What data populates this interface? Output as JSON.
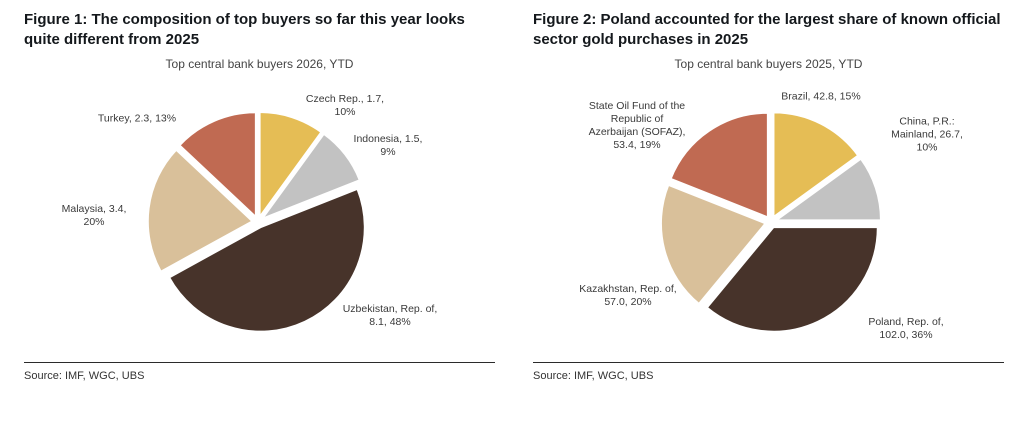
{
  "figures": [
    {
      "heading": "Figure 1: The composition of top buyers so far this year looks quite different from 2025",
      "chart_title": "Top central bank buyers 2026, YTD",
      "source": "Source: IMF, WGC, UBS",
      "chart_data": {
        "type": "pie",
        "title": "Top central bank buyers 2026, YTD",
        "start_angle_deg": -90,
        "direction": "clockwise",
        "center": [
          234,
          170
        ],
        "radius": 104,
        "explode": 6,
        "slices": [
          {
            "key": "czech-rep",
            "name": "Czech Rep.",
            "value": 1.7,
            "pct": 10,
            "color": "#e5bd55",
            "label": "Czech Rep., 1.7, 10%",
            "label_offset": [
              87,
              -116
            ],
            "label_width": 86
          },
          {
            "key": "indonesia",
            "name": "Indonesia",
            "value": 1.5,
            "pct": 9,
            "color": "#c2c2c2",
            "label": "Indonesia, 1.5, 9%",
            "label_offset": [
              130,
              -76
            ],
            "label_width": 84
          },
          {
            "key": "uzbekistan",
            "name": "Uzbekistan, Rep. of",
            "value": 8.1,
            "pct": 48,
            "color": "#47332a",
            "label": "Uzbekistan, Rep. of, 8.1, 48%",
            "label_offset": [
              132,
              94
            ],
            "label_width": 98
          },
          {
            "key": "malaysia",
            "name": "Malaysia",
            "value": 3.4,
            "pct": 20,
            "color": "#d9c09a",
            "label": "Malaysia, 3.4, 20%",
            "label_offset": [
              -164,
              -6
            ],
            "label_width": 86
          },
          {
            "key": "turkey",
            "name": "Turkey",
            "value": 2.3,
            "pct": 13,
            "color": "#c06a52",
            "label": "Turkey, 2.3, 13%",
            "label_offset": [
              -121,
              -103
            ],
            "label_width": 122
          }
        ]
      }
    },
    {
      "heading": "Figure 2: Poland accounted for the largest share of known official sector gold purchases in 2025",
      "chart_title": "Top central bank buyers 2025, YTD",
      "source": "Source: IMF, WGC, UBS",
      "chart_data": {
        "type": "pie",
        "title": "Top central bank buyers 2025, YTD",
        "start_angle_deg": -90,
        "direction": "clockwise",
        "center": [
          238,
          170
        ],
        "radius": 104,
        "explode": 6,
        "slices": [
          {
            "key": "brazil",
            "name": "Brazil",
            "value": 42.8,
            "pct": 15,
            "color": "#e5bd55",
            "label": "Brazil, 42.8, 15%",
            "label_offset": [
              50,
              -125
            ],
            "label_width": 118
          },
          {
            "key": "china",
            "name": "China, P.R.: Mainland",
            "value": 26.7,
            "pct": 10,
            "color": "#c2c2c2",
            "label": "China, P.R.: Mainland, 26.7, 10%",
            "label_offset": [
              156,
              -87
            ],
            "label_width": 94
          },
          {
            "key": "poland",
            "name": "Poland, Rep. of",
            "value": 102.0,
            "pct": 36,
            "color": "#47332a",
            "label": "Poland, Rep. of, 102.0, 36%",
            "label_offset": [
              135,
              107
            ],
            "label_width": 100
          },
          {
            "key": "kazakhstan",
            "name": "Kazakhstan, Rep. of",
            "value": 57.0,
            "pct": 20,
            "color": "#d9c09a",
            "label": "Kazakhstan, Rep. of, 57.0, 20%",
            "label_offset": [
              -143,
              74
            ],
            "label_width": 102
          },
          {
            "key": "sofaz",
            "name": "State Oil Fund of the Republic of Azerbaijan (SOFAZ)",
            "value": 53.4,
            "pct": 19,
            "color": "#c06a52",
            "label": "State Oil Fund of the Republic of Azerbaijan (SOFAZ), 53.4, 19%",
            "label_offset": [
              -134,
              -96
            ],
            "label_width": 100
          }
        ]
      }
    }
  ]
}
